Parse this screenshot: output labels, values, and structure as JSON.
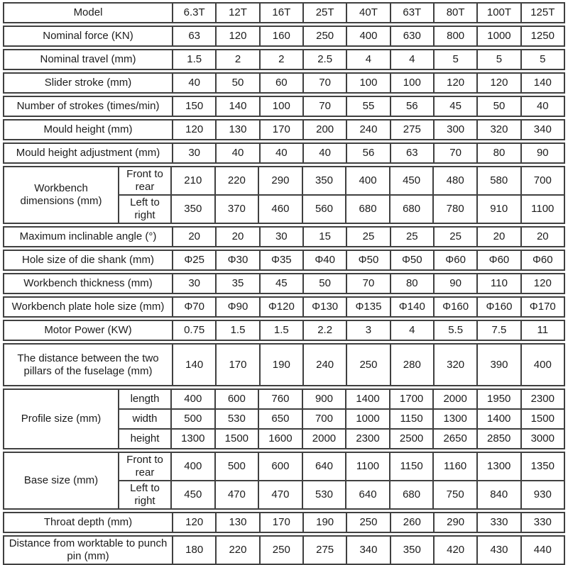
{
  "colors": {
    "border": "#404040",
    "text": "#1c1c1c",
    "background": "#ffffff"
  },
  "table": {
    "groups": [
      {
        "label": "Model",
        "rows": [
          {
            "values": [
              "6.3T",
              "12T",
              "16T",
              "25T",
              "40T",
              "63T",
              "80T",
              "100T",
              "125T"
            ]
          }
        ]
      },
      {
        "label": "Nominal force (KN)",
        "rows": [
          {
            "values": [
              "63",
              "120",
              "160",
              "250",
              "400",
              "630",
              "800",
              "1000",
              "1250"
            ]
          }
        ]
      },
      {
        "label": "Nominal travel (mm)",
        "rows": [
          {
            "values": [
              "1.5",
              "2",
              "2",
              "2.5",
              "4",
              "4",
              "5",
              "5",
              "5"
            ]
          }
        ]
      },
      {
        "label": "Slider stroke (mm)",
        "rows": [
          {
            "values": [
              "40",
              "50",
              "60",
              "70",
              "100",
              "100",
              "120",
              "120",
              "140"
            ]
          }
        ]
      },
      {
        "label": "Number of strokes (times/min)",
        "rows": [
          {
            "values": [
              "150",
              "140",
              "100",
              "70",
              "55",
              "56",
              "45",
              "50",
              "40"
            ]
          }
        ]
      },
      {
        "label": "Mould height (mm)",
        "rows": [
          {
            "values": [
              "120",
              "130",
              "170",
              "200",
              "240",
              "275",
              "300",
              "320",
              "340"
            ]
          }
        ]
      },
      {
        "label": "Mould height adjustment (mm)",
        "rows": [
          {
            "values": [
              "30",
              "40",
              "40",
              "40",
              "56",
              "63",
              "70",
              "80",
              "90"
            ]
          }
        ]
      },
      {
        "label": "Workbench dimensions (mm)",
        "rows": [
          {
            "sublabel": "Front to rear",
            "values": [
              "210",
              "220",
              "290",
              "350",
              "400",
              "450",
              "480",
              "580",
              "700"
            ]
          },
          {
            "sublabel": "Left to right",
            "values": [
              "350",
              "370",
              "460",
              "560",
              "680",
              "680",
              "780",
              "910",
              "1100"
            ]
          }
        ]
      },
      {
        "label": "Maximum inclinable angle (°)",
        "rows": [
          {
            "values": [
              "20",
              "20",
              "30",
              "15",
              "25",
              "25",
              "25",
              "20",
              "20"
            ]
          }
        ]
      },
      {
        "label": "Hole size of die shank (mm)",
        "rows": [
          {
            "values": [
              "Φ25",
              "Φ30",
              "Φ35",
              "Φ40",
              "Φ50",
              "Φ50",
              "Φ60",
              "Φ60",
              "Φ60"
            ]
          }
        ]
      },
      {
        "label": "Workbench thickness (mm)",
        "rows": [
          {
            "values": [
              "30",
              "35",
              "45",
              "50",
              "70",
              "80",
              "90",
              "110",
              "120"
            ]
          }
        ]
      },
      {
        "label": "Workbench plate hole size (mm)",
        "rows": [
          {
            "values": [
              "Φ70",
              "Φ90",
              "Φ120",
              "Φ130",
              "Φ135",
              "Φ140",
              "Φ160",
              "Φ160",
              "Φ170"
            ]
          }
        ]
      },
      {
        "label": "Motor Power (KW)",
        "rows": [
          {
            "values": [
              "0.75",
              "1.5",
              "1.5",
              "2.2",
              "3",
              "4",
              "5.5",
              "7.5",
              "11"
            ]
          }
        ]
      },
      {
        "label": "The distance between the two pillars of the fuselage (mm)",
        "rows": [
          {
            "values": [
              "140",
              "170",
              "190",
              "240",
              "250",
              "280",
              "320",
              "390",
              "400"
            ]
          }
        ]
      },
      {
        "label": "Profile size (mm)",
        "rows": [
          {
            "sublabel": "length",
            "values": [
              "400",
              "600",
              "760",
              "900",
              "1400",
              "1700",
              "2000",
              "1950",
              "2300"
            ]
          },
          {
            "sublabel": "width",
            "values": [
              "500",
              "530",
              "650",
              "700",
              "1000",
              "1150",
              "1300",
              "1400",
              "1500"
            ]
          },
          {
            "sublabel": "height",
            "values": [
              "1300",
              "1500",
              "1600",
              "2000",
              "2300",
              "2500",
              "2650",
              "2850",
              "3000"
            ]
          }
        ]
      },
      {
        "label": "Base size (mm)",
        "rows": [
          {
            "sublabel": "Front to rear",
            "values": [
              "400",
              "500",
              "600",
              "640",
              "1100",
              "1150",
              "1160",
              "1300",
              "1350"
            ]
          },
          {
            "sublabel": "Left to right",
            "values": [
              "450",
              "470",
              "470",
              "530",
              "640",
              "680",
              "750",
              "840",
              "930"
            ]
          }
        ]
      },
      {
        "label": "Throat depth (mm)",
        "rows": [
          {
            "values": [
              "120",
              "130",
              "170",
              "190",
              "250",
              "260",
              "290",
              "330",
              "330"
            ]
          }
        ]
      },
      {
        "label": "Distance from worktable to punch pin (mm)",
        "rows": [
          {
            "values": [
              "180",
              "220",
              "250",
              "275",
              "340",
              "350",
              "420",
              "430",
              "440"
            ]
          }
        ]
      }
    ]
  }
}
